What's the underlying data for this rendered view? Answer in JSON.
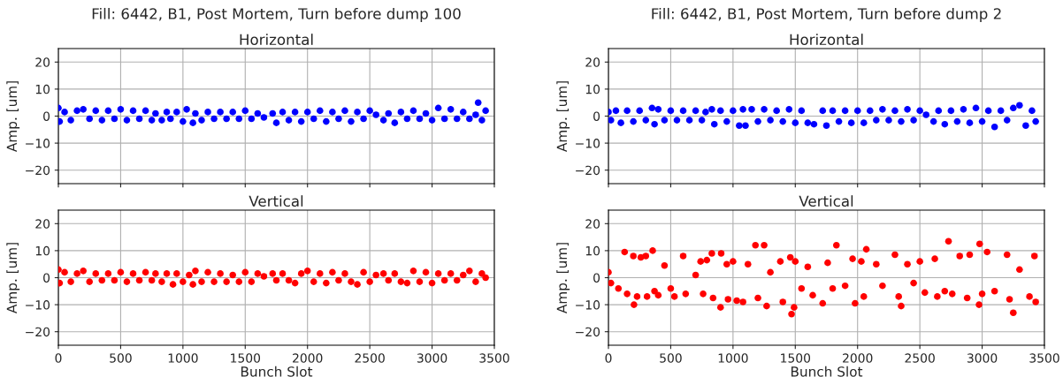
{
  "chart_data": [
    {
      "type": "scatter",
      "title": "Fill: 6442, B1, Post Mortem, Turn before dump 100",
      "subtitle": "Horizontal",
      "ylabel": "Amp. [um]",
      "xlim": [
        0,
        3500
      ],
      "xticks": [
        0,
        500,
        1000,
        1500,
        2000,
        2500,
        3000,
        3500
      ],
      "ylim": [
        -25,
        25
      ],
      "yticks": [
        -20,
        -10,
        0,
        10,
        20
      ],
      "tick_labels": "y",
      "grid": true,
      "marker": "circle",
      "series": [
        {
          "color": "#0000ff",
          "x": [
            0,
            10,
            50,
            100,
            150,
            200,
            250,
            300,
            350,
            400,
            450,
            500,
            550,
            600,
            650,
            700,
            750,
            780,
            830,
            870,
            900,
            950,
            1000,
            1030,
            1080,
            1100,
            1150,
            1200,
            1250,
            1300,
            1350,
            1400,
            1450,
            1500,
            1550,
            1600,
            1650,
            1720,
            1750,
            1800,
            1850,
            1900,
            1950,
            2000,
            2050,
            2100,
            2150,
            2200,
            2250,
            2300,
            2350,
            2400,
            2450,
            2500,
            2550,
            2610,
            2650,
            2700,
            2750,
            2800,
            2850,
            2900,
            2950,
            3000,
            3050,
            3100,
            3150,
            3200,
            3250,
            3300,
            3350,
            3370,
            3400,
            3430
          ],
          "values": [
            3,
            -2,
            1.5,
            -1.5,
            2,
            2.5,
            -1,
            2,
            -1.5,
            2,
            -1,
            2.5,
            -1.5,
            2,
            -1,
            2,
            -1.5,
            1,
            -1.5,
            1.5,
            -1,
            1.5,
            -2,
            2.5,
            -2.5,
            1,
            -1.5,
            1.5,
            -1,
            1.5,
            -1,
            1.5,
            -1,
            2,
            -1,
            1,
            -0.5,
            1,
            -2.5,
            1.5,
            -1.5,
            1.5,
            -2,
            1.5,
            -1,
            2,
            -2,
            1.5,
            -1,
            2,
            -2,
            1.5,
            -1,
            2,
            0.5,
            -1.5,
            1,
            -2.5,
            1.5,
            -1,
            2,
            -1,
            1,
            -1.5,
            3,
            -1,
            2.5,
            -1,
            1.5,
            -1,
            0.5,
            5,
            -1.5,
            2
          ]
        }
      ]
    },
    {
      "type": "scatter",
      "title": "Fill: 6442, B1, Post Mortem, Turn before dump 2",
      "subtitle": "Horizontal",
      "ylabel": "Amp. [um]",
      "xlim": [
        0,
        3500
      ],
      "xticks": [
        0,
        500,
        1000,
        1500,
        2000,
        2500,
        3000,
        3500
      ],
      "ylim": [
        -25,
        25
      ],
      "yticks": [
        -20,
        -10,
        0,
        10,
        20
      ],
      "tick_labels": "y",
      "grid": true,
      "marker": "circle",
      "series": [
        {
          "color": "#0000ff",
          "x": [
            0,
            20,
            60,
            100,
            150,
            200,
            250,
            300,
            350,
            370,
            400,
            450,
            500,
            550,
            600,
            650,
            700,
            750,
            780,
            830,
            850,
            900,
            950,
            1000,
            1050,
            1080,
            1100,
            1150,
            1200,
            1250,
            1300,
            1350,
            1400,
            1450,
            1500,
            1550,
            1600,
            1650,
            1720,
            1750,
            1800,
            1850,
            1900,
            1950,
            2000,
            2050,
            2100,
            2150,
            2200,
            2250,
            2300,
            2350,
            2400,
            2450,
            2500,
            2550,
            2610,
            2650,
            2700,
            2750,
            2800,
            2850,
            2900,
            2950,
            3000,
            3050,
            3100,
            3150,
            3200,
            3250,
            3300,
            3350,
            3400,
            3430
          ],
          "values": [
            1.5,
            -1.5,
            2,
            -2.5,
            2,
            -2,
            2,
            -1.5,
            3,
            -3,
            2.5,
            -1.5,
            2,
            -1.5,
            2,
            -1.5,
            2,
            -1.5,
            1.5,
            2.5,
            -3,
            2,
            -2,
            2,
            -3.5,
            2.5,
            -3.5,
            2.5,
            -2,
            2.5,
            -1.5,
            2,
            -2,
            2.5,
            -2.5,
            2,
            -2.5,
            -3,
            2,
            -3.5,
            2,
            -2,
            2,
            -2.5,
            2,
            -2.5,
            2,
            -1.5,
            2.5,
            -1.5,
            2,
            -2,
            2.5,
            -1.5,
            2,
            0.5,
            -2,
            2,
            -3,
            2,
            -2,
            2.5,
            -2.5,
            3,
            -2,
            2,
            -4,
            2,
            -1.5,
            3,
            4,
            -3.5,
            2,
            -2
          ]
        }
      ]
    },
    {
      "type": "scatter",
      "title": "Vertical",
      "ylabel": "Amp. [um]",
      "xlabel": "Bunch Slot",
      "xlim": [
        0,
        3500
      ],
      "xticks": [
        0,
        500,
        1000,
        1500,
        2000,
        2500,
        3000,
        3500
      ],
      "ylim": [
        -25,
        25
      ],
      "yticks": [
        -20,
        -10,
        0,
        10,
        20
      ],
      "grid": true,
      "marker": "circle",
      "series": [
        {
          "color": "#ff0000",
          "x": [
            0,
            10,
            50,
            100,
            150,
            200,
            250,
            300,
            350,
            400,
            450,
            500,
            550,
            600,
            650,
            700,
            750,
            780,
            830,
            870,
            920,
            950,
            1000,
            1050,
            1080,
            1100,
            1150,
            1200,
            1250,
            1300,
            1350,
            1400,
            1450,
            1500,
            1550,
            1600,
            1650,
            1720,
            1750,
            1800,
            1850,
            1900,
            1950,
            2000,
            2050,
            2100,
            2150,
            2200,
            2250,
            2300,
            2350,
            2400,
            2450,
            2500,
            2550,
            2610,
            2650,
            2700,
            2750,
            2800,
            2850,
            2900,
            2950,
            3000,
            3050,
            3100,
            3150,
            3200,
            3250,
            3300,
            3350,
            3400,
            3430
          ],
          "values": [
            3,
            -2,
            2,
            -1.5,
            1.5,
            2.5,
            -1.5,
            1.5,
            -1,
            1.5,
            -1,
            2,
            -1.5,
            1.5,
            -1,
            2,
            -1,
            1.5,
            -1.5,
            1.5,
            -2.5,
            1.5,
            -1.5,
            1,
            -2.5,
            2.5,
            -1.5,
            2,
            -1.5,
            1.5,
            -1.5,
            1,
            -1.5,
            2,
            -1.5,
            1.5,
            0.5,
            1.5,
            -1,
            1.5,
            -1,
            -2,
            1.5,
            2.5,
            -1.5,
            1.5,
            -2,
            2,
            -1,
            1.5,
            -1.5,
            -2.5,
            2,
            -1.5,
            1,
            1.5,
            -1,
            1.5,
            -1.5,
            -2,
            2.5,
            -1.5,
            2,
            -2,
            1.5,
            -1,
            1.5,
            -1,
            1,
            2.5,
            -1.5,
            1.5,
            0
          ]
        }
      ]
    },
    {
      "type": "scatter",
      "title": "Vertical",
      "ylabel": "Amp. [um]",
      "xlabel": "Bunch Slot",
      "xlim": [
        0,
        3500
      ],
      "xticks": [
        0,
        500,
        1000,
        1500,
        2000,
        2500,
        3000,
        3500
      ],
      "ylim": [
        -25,
        25
      ],
      "yticks": [
        -20,
        -10,
        0,
        10,
        20
      ],
      "grid": true,
      "marker": "circle",
      "series": [
        {
          "color": "#ff0000",
          "x": [
            0,
            20,
            80,
            130,
            150,
            200,
            205,
            230,
            260,
            300,
            310,
            355,
            370,
            400,
            450,
            500,
            530,
            600,
            620,
            700,
            740,
            760,
            790,
            830,
            840,
            900,
            905,
            950,
            960,
            1000,
            1030,
            1080,
            1120,
            1180,
            1200,
            1250,
            1270,
            1300,
            1380,
            1400,
            1460,
            1470,
            1490,
            1500,
            1550,
            1600,
            1640,
            1720,
            1760,
            1800,
            1830,
            1900,
            1960,
            1980,
            2030,
            2050,
            2070,
            2150,
            2200,
            2300,
            2330,
            2350,
            2400,
            2450,
            2500,
            2540,
            2620,
            2640,
            2700,
            2730,
            2760,
            2820,
            2880,
            2900,
            2975,
            2980,
            3000,
            3040,
            3100,
            3200,
            3220,
            3250,
            3300,
            3380,
            3420,
            3430
          ],
          "values": [
            2,
            -2,
            -4,
            9.5,
            -6,
            8,
            -10,
            -7,
            7.5,
            8,
            -7,
            10,
            -5,
            -6.5,
            4.5,
            -4,
            -7,
            8,
            -6,
            1,
            6,
            -6,
            6.5,
            9,
            -7.5,
            -11,
            9,
            5,
            -8,
            6,
            -8.5,
            -9,
            5,
            12,
            -7.5,
            12,
            -10.5,
            2,
            6,
            -9,
            7.5,
            -13.5,
            -11,
            6,
            -4,
            4,
            -6.5,
            -9.5,
            5.5,
            -4,
            12,
            -3,
            7,
            -9.5,
            6,
            -7,
            10.5,
            5,
            -3,
            8.5,
            -7,
            -10.5,
            5,
            -2,
            6,
            -5.5,
            7,
            -7,
            -5,
            13.5,
            -6,
            8,
            -7.5,
            8.5,
            -10,
            12.5,
            -6,
            9.5,
            -5,
            8.5,
            -8,
            -13,
            3,
            -7,
            8,
            -9
          ]
        }
      ]
    }
  ]
}
